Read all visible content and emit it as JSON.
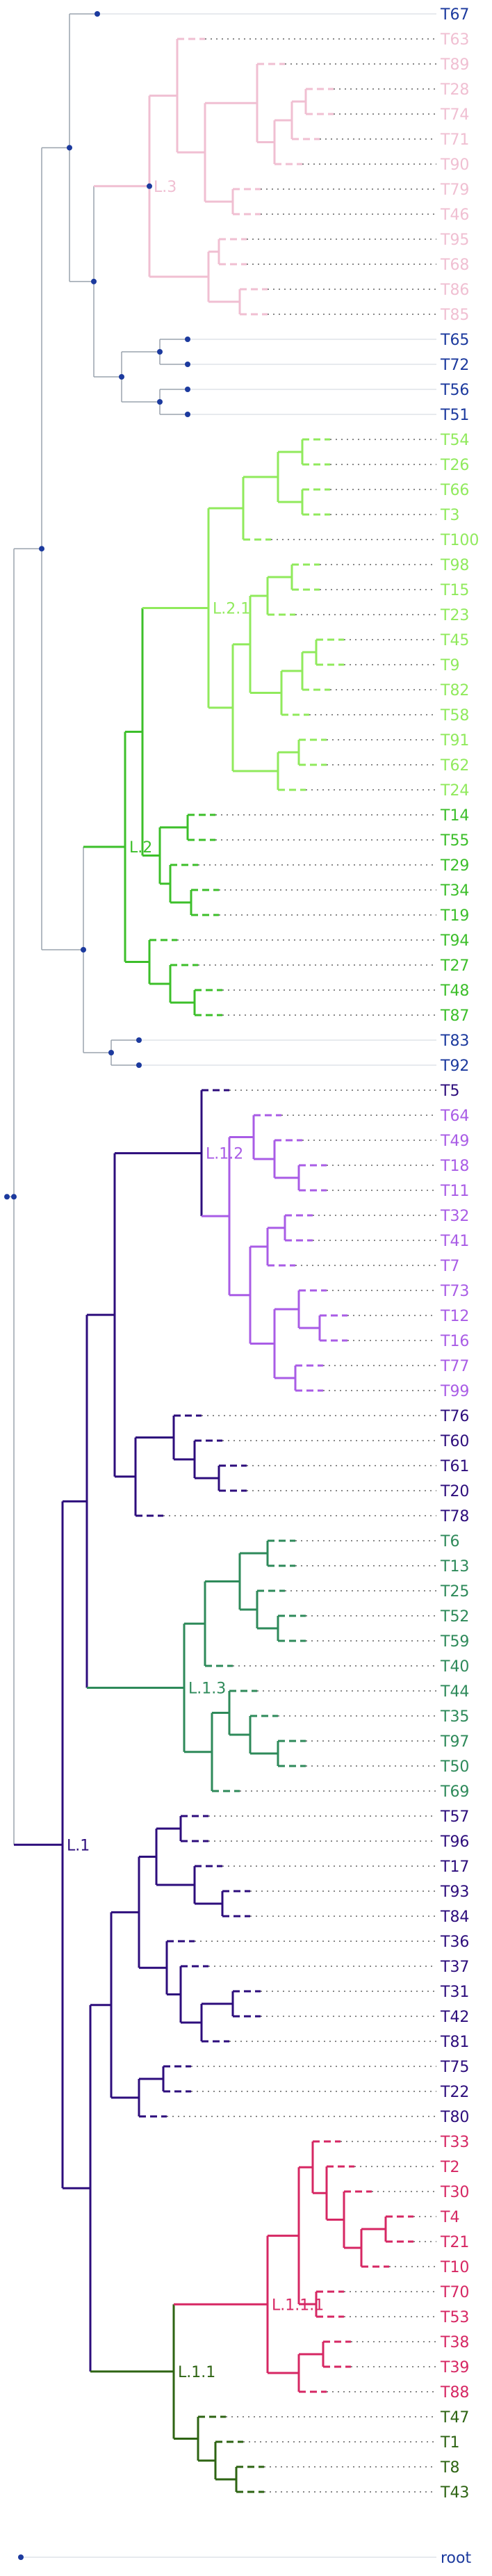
{
  "clades": [
    {
      "id": "L3",
      "label": "L.3",
      "color": "#f0bfd2"
    },
    {
      "id": "L21",
      "label": "L.2.1",
      "color": "#90ea5c"
    },
    {
      "id": "L2",
      "label": "L.2",
      "color": "#3cbf2a"
    },
    {
      "id": "L12",
      "label": "L.1.2",
      "color": "#a95ce6"
    },
    {
      "id": "L13",
      "label": "L.1.3",
      "color": "#2e8a5a"
    },
    {
      "id": "L1",
      "label": "L.1",
      "color": "#2d0d7c"
    },
    {
      "id": "L111",
      "label": "L.1.1.1",
      "color": "#d62763"
    },
    {
      "id": "L11",
      "label": "L.1.1",
      "color": "#2e6413"
    }
  ],
  "root_label": "root",
  "other_color": "#1c3a9e",
  "tip_line_color": "#888888",
  "tree_line_color": "#9aa3ad",
  "leaves": [
    {
      "name": "T67",
      "clade": "other"
    },
    {
      "name": "T63",
      "clade": "L3"
    },
    {
      "name": "T89",
      "clade": "L3"
    },
    {
      "name": "T28",
      "clade": "L3"
    },
    {
      "name": "T74",
      "clade": "L3"
    },
    {
      "name": "T71",
      "clade": "L3"
    },
    {
      "name": "T90",
      "clade": "L3"
    },
    {
      "name": "T79",
      "clade": "L3"
    },
    {
      "name": "T46",
      "clade": "L3"
    },
    {
      "name": "T95",
      "clade": "L3"
    },
    {
      "name": "T68",
      "clade": "L3"
    },
    {
      "name": "T86",
      "clade": "L3"
    },
    {
      "name": "T85",
      "clade": "L3"
    },
    {
      "name": "T65",
      "clade": "other"
    },
    {
      "name": "T72",
      "clade": "other"
    },
    {
      "name": "T56",
      "clade": "other"
    },
    {
      "name": "T51",
      "clade": "other"
    },
    {
      "name": "T54",
      "clade": "L21"
    },
    {
      "name": "T26",
      "clade": "L21"
    },
    {
      "name": "T66",
      "clade": "L21"
    },
    {
      "name": "T3",
      "clade": "L21"
    },
    {
      "name": "T100",
      "clade": "L21"
    },
    {
      "name": "T98",
      "clade": "L21"
    },
    {
      "name": "T15",
      "clade": "L21"
    },
    {
      "name": "T23",
      "clade": "L21"
    },
    {
      "name": "T45",
      "clade": "L21"
    },
    {
      "name": "T9",
      "clade": "L21"
    },
    {
      "name": "T82",
      "clade": "L21"
    },
    {
      "name": "T58",
      "clade": "L21"
    },
    {
      "name": "T91",
      "clade": "L21"
    },
    {
      "name": "T62",
      "clade": "L21"
    },
    {
      "name": "T24",
      "clade": "L21"
    },
    {
      "name": "T14",
      "clade": "L2"
    },
    {
      "name": "T55",
      "clade": "L2"
    },
    {
      "name": "T29",
      "clade": "L2"
    },
    {
      "name": "T34",
      "clade": "L2"
    },
    {
      "name": "T19",
      "clade": "L2"
    },
    {
      "name": "T94",
      "clade": "L2"
    },
    {
      "name": "T27",
      "clade": "L2"
    },
    {
      "name": "T48",
      "clade": "L2"
    },
    {
      "name": "T87",
      "clade": "L2"
    },
    {
      "name": "T83",
      "clade": "other"
    },
    {
      "name": "T92",
      "clade": "other"
    },
    {
      "name": "T5",
      "clade": "L1"
    },
    {
      "name": "T64",
      "clade": "L12"
    },
    {
      "name": "T49",
      "clade": "L12"
    },
    {
      "name": "T18",
      "clade": "L12"
    },
    {
      "name": "T11",
      "clade": "L12"
    },
    {
      "name": "T32",
      "clade": "L12"
    },
    {
      "name": "T41",
      "clade": "L12"
    },
    {
      "name": "T7",
      "clade": "L12"
    },
    {
      "name": "T73",
      "clade": "L12"
    },
    {
      "name": "T12",
      "clade": "L12"
    },
    {
      "name": "T16",
      "clade": "L12"
    },
    {
      "name": "T77",
      "clade": "L12"
    },
    {
      "name": "T99",
      "clade": "L12"
    },
    {
      "name": "T76",
      "clade": "L1"
    },
    {
      "name": "T60",
      "clade": "L1"
    },
    {
      "name": "T61",
      "clade": "L1"
    },
    {
      "name": "T20",
      "clade": "L1"
    },
    {
      "name": "T78",
      "clade": "L1"
    },
    {
      "name": "T6",
      "clade": "L13"
    },
    {
      "name": "T13",
      "clade": "L13"
    },
    {
      "name": "T25",
      "clade": "L13"
    },
    {
      "name": "T52",
      "clade": "L13"
    },
    {
      "name": "T59",
      "clade": "L13"
    },
    {
      "name": "T40",
      "clade": "L13"
    },
    {
      "name": "T44",
      "clade": "L13"
    },
    {
      "name": "T35",
      "clade": "L13"
    },
    {
      "name": "T97",
      "clade": "L13"
    },
    {
      "name": "T50",
      "clade": "L13"
    },
    {
      "name": "T69",
      "clade": "L13"
    },
    {
      "name": "T57",
      "clade": "L1"
    },
    {
      "name": "T96",
      "clade": "L1"
    },
    {
      "name": "T17",
      "clade": "L1"
    },
    {
      "name": "T93",
      "clade": "L1"
    },
    {
      "name": "T84",
      "clade": "L1"
    },
    {
      "name": "T36",
      "clade": "L1"
    },
    {
      "name": "T37",
      "clade": "L1"
    },
    {
      "name": "T31",
      "clade": "L1"
    },
    {
      "name": "T42",
      "clade": "L1"
    },
    {
      "name": "T81",
      "clade": "L1"
    },
    {
      "name": "T75",
      "clade": "L1"
    },
    {
      "name": "T22",
      "clade": "L1"
    },
    {
      "name": "T80",
      "clade": "L1"
    },
    {
      "name": "T33",
      "clade": "L111"
    },
    {
      "name": "T2",
      "clade": "L111"
    },
    {
      "name": "T30",
      "clade": "L111"
    },
    {
      "name": "T4",
      "clade": "L111"
    },
    {
      "name": "T21",
      "clade": "L111"
    },
    {
      "name": "T10",
      "clade": "L111"
    },
    {
      "name": "T70",
      "clade": "L111"
    },
    {
      "name": "T53",
      "clade": "L111"
    },
    {
      "name": "T38",
      "clade": "L111"
    },
    {
      "name": "T39",
      "clade": "L111"
    },
    {
      "name": "T88",
      "clade": "L111"
    },
    {
      "name": "T47",
      "clade": "L11"
    },
    {
      "name": "T1",
      "clade": "L11"
    },
    {
      "name": "T8",
      "clade": "L11"
    },
    {
      "name": "T43",
      "clade": "L11"
    }
  ]
}
